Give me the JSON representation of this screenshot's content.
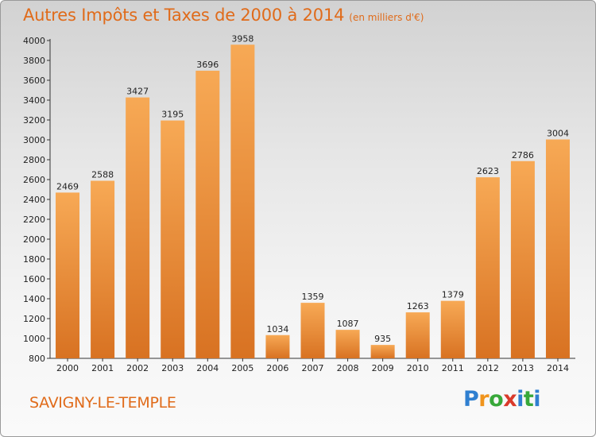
{
  "title": "Autres Impôts et Taxes de 2000 à 2014",
  "subtitle": "(en milliers d'€)",
  "city": "SAVIGNY-LE-TEMPLE",
  "brand": {
    "letters": [
      "P",
      "r",
      "o",
      "x",
      "i",
      "t",
      "i"
    ],
    "colors": [
      "#2f7fd0",
      "#f0941c",
      "#38a83a",
      "#d93a2b",
      "#2f7fd0",
      "#38a83a",
      "#2f7fd0"
    ]
  },
  "colors": {
    "bar_light": "#f7a955",
    "bar_dark": "#d87222",
    "title": "#e06b1a"
  },
  "chart_data": {
    "type": "bar",
    "title": "Autres Impôts et Taxes de 2000 à 2014",
    "subtitle": "(en milliers d'€)",
    "xlabel": "",
    "ylabel": "",
    "categories": [
      "2000",
      "2001",
      "2002",
      "2003",
      "2004",
      "2005",
      "2006",
      "2007",
      "2008",
      "2009",
      "2010",
      "2011",
      "2012",
      "2013",
      "2014"
    ],
    "values": [
      2469,
      2588,
      3427,
      3195,
      3696,
      3958,
      1034,
      1359,
      1087,
      935,
      1263,
      1379,
      2623,
      2786,
      3004
    ],
    "ylim": [
      800,
      4000
    ],
    "yticks": [
      800,
      1000,
      1200,
      1400,
      1600,
      1800,
      2000,
      2200,
      2400,
      2600,
      2800,
      3000,
      3200,
      3400,
      3600,
      3800,
      4000
    ],
    "grid": false,
    "data_labels": true
  }
}
